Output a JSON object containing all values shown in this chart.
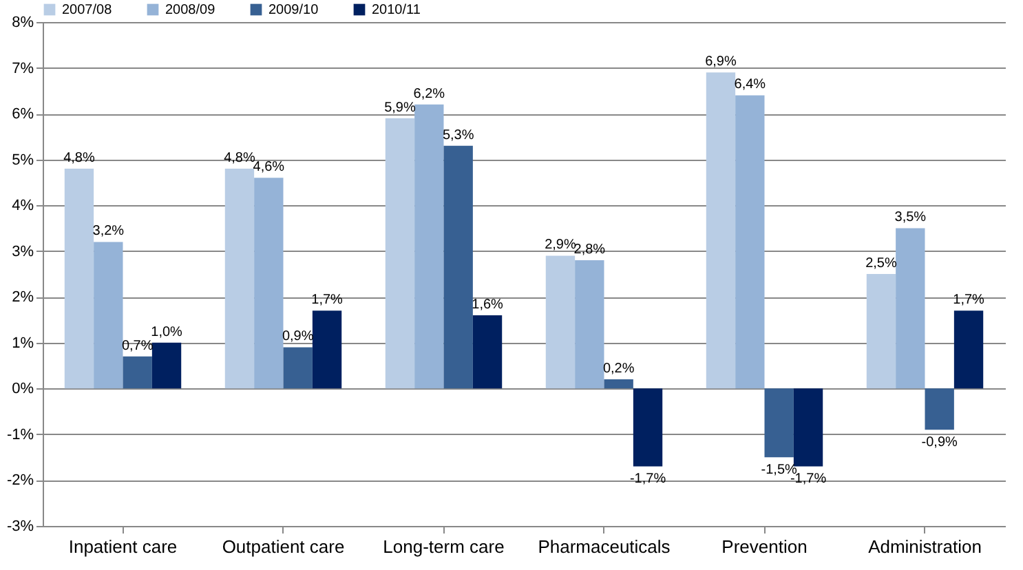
{
  "chart_data": {
    "type": "bar",
    "categories": [
      "Inpatient care",
      "Outpatient care",
      "Long-term care",
      "Pharmaceuticals",
      "Prevention",
      "Administration"
    ],
    "series": [
      {
        "name": "2007/08",
        "color": "#b9cde5",
        "values": [
          4.8,
          4.8,
          5.9,
          2.9,
          6.9,
          2.5
        ],
        "value_labels": [
          "4,8%",
          "4,8%",
          "5,9%",
          "2,9%",
          "6,9%",
          "2,5%"
        ]
      },
      {
        "name": "2008/09",
        "color": "#95b3d7",
        "values": [
          3.2,
          4.6,
          6.2,
          2.8,
          6.4,
          3.5
        ],
        "value_labels": [
          "3,2%",
          "4,6%",
          "6,2%",
          "2,8%",
          "6,4%",
          "3,5%"
        ]
      },
      {
        "name": "2009/10",
        "color": "#376092",
        "values": [
          0.7,
          0.9,
          5.3,
          0.2,
          -1.5,
          -0.9
        ],
        "value_labels": [
          "0,7%",
          "0,9%",
          "5,3%",
          "0,2%",
          "-1,5%",
          "-0,9%"
        ]
      },
      {
        "name": "2010/11",
        "color": "#002060",
        "values": [
          1.0,
          1.7,
          1.6,
          -1.7,
          -1.7,
          1.7
        ],
        "value_labels": [
          "1,0%",
          "1,7%",
          "1,6%",
          "-1,7%",
          "-1,7%",
          "1,7%"
        ]
      }
    ],
    "ylim": [
      -3,
      8
    ],
    "yticks": [
      {
        "value": -3,
        "label": "-3%"
      },
      {
        "value": -2,
        "label": "-2%"
      },
      {
        "value": -1,
        "label": "-1%"
      },
      {
        "value": 0,
        "label": "0%"
      },
      {
        "value": 1,
        "label": "1%"
      },
      {
        "value": 2,
        "label": "2%"
      },
      {
        "value": 3,
        "label": "3%"
      },
      {
        "value": 4,
        "label": "4%"
      },
      {
        "value": 5,
        "label": "5%"
      },
      {
        "value": 6,
        "label": "6%"
      },
      {
        "value": 7,
        "label": "7%"
      },
      {
        "value": 8,
        "label": "8%"
      }
    ],
    "grid": "y",
    "legend": "top"
  }
}
